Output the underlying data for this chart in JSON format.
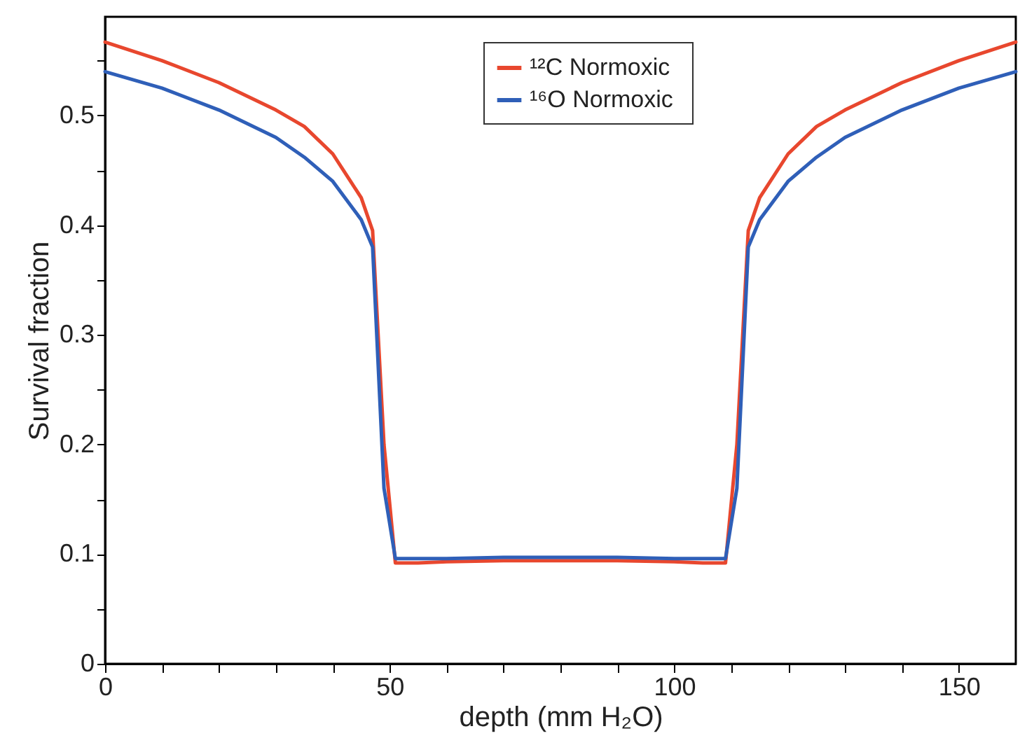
{
  "chart_data": {
    "type": "line",
    "xlabel": "depth (mm H₂O)",
    "ylabel": "Survival fraction",
    "x": [
      0,
      10,
      20,
      30,
      35,
      40,
      45,
      47,
      49,
      51,
      55,
      60,
      70,
      80,
      90,
      100,
      105,
      109,
      111,
      113,
      115,
      120,
      125,
      130,
      140,
      150,
      160
    ],
    "series": [
      {
        "name": "¹²C Normoxic",
        "color": "#e8472e",
        "values": [
          0.567,
          0.55,
          0.53,
          0.505,
          0.49,
          0.465,
          0.425,
          0.395,
          0.2,
          0.092,
          0.092,
          0.093,
          0.094,
          0.094,
          0.094,
          0.093,
          0.092,
          0.092,
          0.2,
          0.395,
          0.425,
          0.465,
          0.49,
          0.505,
          0.53,
          0.55,
          0.567
        ]
      },
      {
        "name": "¹⁶O  Normoxic",
        "color": "#2f5fb8",
        "values": [
          0.54,
          0.525,
          0.505,
          0.48,
          0.462,
          0.44,
          0.405,
          0.38,
          0.16,
          0.096,
          0.096,
          0.096,
          0.097,
          0.097,
          0.097,
          0.096,
          0.096,
          0.096,
          0.16,
          0.38,
          0.405,
          0.44,
          0.462,
          0.48,
          0.505,
          0.525,
          0.54
        ]
      }
    ],
    "xlim": [
      0,
      160
    ],
    "xticks": [
      0,
      {
        "value": 10,
        "label": null
      },
      {
        "value": 20,
        "label": null
      },
      {
        "value": 30,
        "label": null
      },
      {
        "value": 40,
        "label": null
      },
      50,
      {
        "value": 60,
        "label": null
      },
      {
        "value": 70,
        "label": null
      },
      {
        "value": 80,
        "label": null
      },
      {
        "value": 90,
        "label": null
      },
      100,
      {
        "value": 110,
        "label": null
      },
      {
        "value": 120,
        "label": null
      },
      {
        "value": 130,
        "label": null
      },
      {
        "value": 140,
        "label": null
      },
      150
    ],
    "ylim": [
      0,
      0.59
    ],
    "yticks": [
      0,
      {
        "value": 0.05,
        "label": null
      },
      0.1,
      {
        "value": 0.15,
        "label": null
      },
      0.2,
      {
        "value": 0.25,
        "label": null
      },
      0.3,
      {
        "value": 0.35,
        "label": null
      },
      0.4,
      {
        "value": 0.45,
        "label": null
      },
      0.5,
      {
        "value": 0.55,
        "label": null
      }
    ],
    "grid": false,
    "legend": "top",
    "line_style": "solid",
    "marker": "none"
  }
}
